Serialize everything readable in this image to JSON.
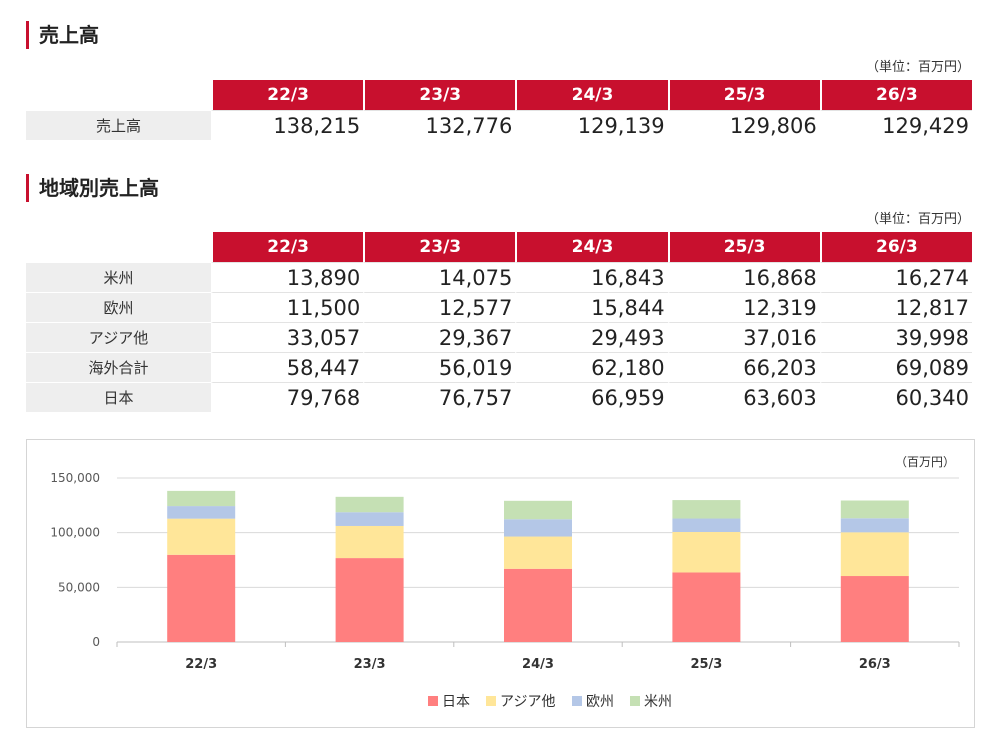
{
  "sales": {
    "title": "売上高",
    "unit": "（単位：百万円）",
    "years": [
      "22/3",
      "23/3",
      "24/3",
      "25/3",
      "26/3"
    ],
    "row_label": "売上高",
    "values": [
      "138,215",
      "132,776",
      "129,139",
      "129,806",
      "129,429"
    ]
  },
  "regional": {
    "title": "地域別売上高",
    "unit": "（単位：百万円）",
    "years": [
      "22/3",
      "23/3",
      "24/3",
      "25/3",
      "26/3"
    ],
    "rows": [
      {
        "label": "米州",
        "values": [
          "13,890",
          "14,075",
          "16,843",
          "16,868",
          "16,274"
        ]
      },
      {
        "label": "欧州",
        "values": [
          "11,500",
          "12,577",
          "15,844",
          "12,319",
          "12,817"
        ]
      },
      {
        "label": "アジア他",
        "values": [
          "33,057",
          "29,367",
          "29,493",
          "37,016",
          "39,998"
        ]
      },
      {
        "label": "海外合計",
        "values": [
          "58,447",
          "56,019",
          "62,180",
          "66,203",
          "69,089"
        ]
      },
      {
        "label": "日本",
        "values": [
          "79,768",
          "76,757",
          "66,959",
          "63,603",
          "60,340"
        ]
      }
    ]
  },
  "chart_data": {
    "type": "bar",
    "stacked": true,
    "unit_label": "（百万円）",
    "categories": [
      "22/3",
      "23/3",
      "24/3",
      "25/3",
      "26/3"
    ],
    "ylim": [
      0,
      150000
    ],
    "yticks": [
      0,
      50000,
      100000,
      150000
    ],
    "ytick_labels": [
      "0",
      "50,000",
      "100,000",
      "150,000"
    ],
    "grid": true,
    "legend_position": "bottom",
    "series": [
      {
        "name": "日本",
        "color": "#ff7f7f",
        "values": [
          79768,
          76757,
          66959,
          63603,
          60340
        ]
      },
      {
        "name": "アジア他",
        "color": "#ffe699",
        "values": [
          33057,
          29367,
          29493,
          37016,
          39998
        ]
      },
      {
        "name": "欧州",
        "color": "#b4c7e7",
        "values": [
          11500,
          12577,
          15844,
          12319,
          12817
        ]
      },
      {
        "name": "米州",
        "color": "#c5e0b4",
        "values": [
          13890,
          14075,
          16843,
          16868,
          16274
        ]
      }
    ]
  }
}
